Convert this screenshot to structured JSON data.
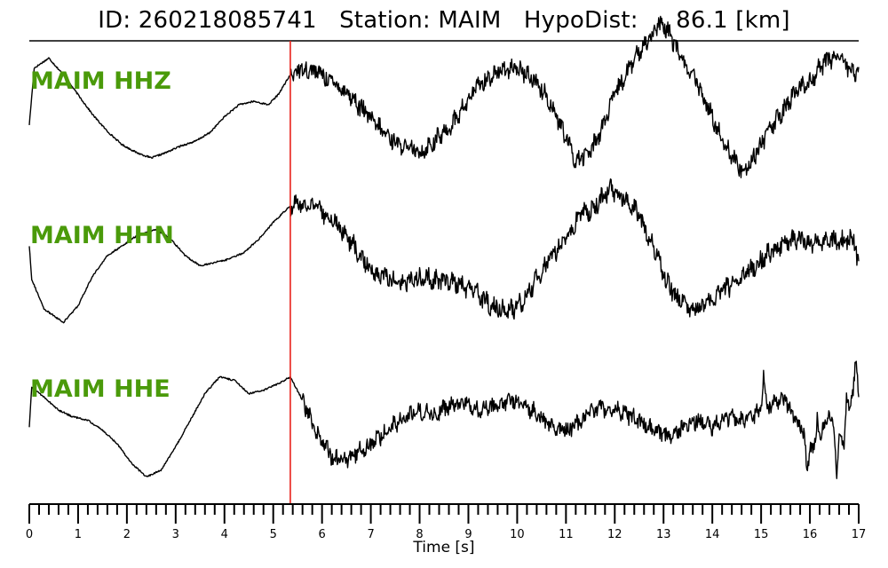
{
  "header": {
    "title": "ID: 260218085741   Station: MAIM   HypoDist:     86.1 [km]"
  },
  "chart_data": {
    "type": "line",
    "title": "ID: 260218085741   Station: MAIM   HypoDist:     86.1 [km]",
    "xlabel": "Time [s]",
    "ylabel": "",
    "xlim": [
      0,
      17
    ],
    "x_major_ticks": [
      0,
      1,
      2,
      3,
      4,
      5,
      6,
      7,
      8,
      9,
      10,
      11,
      12,
      13,
      14,
      15,
      16,
      17
    ],
    "x_minor_step": 0.2,
    "grid": false,
    "legend": "none",
    "pick_time": 5.35,
    "colors": {
      "trace": "#000000",
      "label": "#4a9a0a",
      "pick": "#e8201a"
    },
    "series": [
      {
        "name": "MAIM HHZ",
        "points": [
          [
            0,
            -0.3
          ],
          [
            0.1,
            0.55
          ],
          [
            0.4,
            0.7
          ],
          [
            0.7,
            0.45
          ],
          [
            1.0,
            0.15
          ],
          [
            1.3,
            -0.15
          ],
          [
            1.6,
            -0.4
          ],
          [
            1.9,
            -0.6
          ],
          [
            2.2,
            -0.72
          ],
          [
            2.5,
            -0.8
          ],
          [
            2.8,
            -0.72
          ],
          [
            3.1,
            -0.62
          ],
          [
            3.4,
            -0.55
          ],
          [
            3.7,
            -0.42
          ],
          [
            4.0,
            -0.18
          ],
          [
            4.3,
            0.0
          ],
          [
            4.6,
            0.05
          ],
          [
            4.9,
            0.0
          ],
          [
            5.1,
            0.15
          ],
          [
            5.35,
            0.45
          ],
          [
            5.6,
            0.55
          ],
          [
            5.9,
            0.5
          ],
          [
            6.2,
            0.35
          ],
          [
            6.5,
            0.2
          ],
          [
            6.8,
            -0.05
          ],
          [
            7.1,
            -0.3
          ],
          [
            7.4,
            -0.5
          ],
          [
            7.7,
            -0.65
          ],
          [
            8.0,
            -0.72
          ],
          [
            8.3,
            -0.55
          ],
          [
            8.6,
            -0.35
          ],
          [
            8.9,
            -0.05
          ],
          [
            9.2,
            0.3
          ],
          [
            9.5,
            0.45
          ],
          [
            9.8,
            0.55
          ],
          [
            10.1,
            0.5
          ],
          [
            10.4,
            0.35
          ],
          [
            10.7,
            0.0
          ],
          [
            11.0,
            -0.5
          ],
          [
            11.2,
            -0.85
          ],
          [
            11.5,
            -0.7
          ],
          [
            11.8,
            -0.25
          ],
          [
            12.0,
            0.15
          ],
          [
            12.3,
            0.55
          ],
          [
            12.6,
            0.9
          ],
          [
            12.9,
            1.2
          ],
          [
            13.1,
            1.1
          ],
          [
            13.4,
            0.65
          ],
          [
            13.7,
            0.3
          ],
          [
            14.0,
            -0.2
          ],
          [
            14.3,
            -0.65
          ],
          [
            14.6,
            -1.0
          ],
          [
            14.8,
            -0.85
          ],
          [
            15.1,
            -0.45
          ],
          [
            15.4,
            -0.15
          ],
          [
            15.7,
            0.2
          ],
          [
            16.0,
            0.35
          ],
          [
            16.3,
            0.65
          ],
          [
            16.6,
            0.75
          ],
          [
            16.8,
            0.55
          ],
          [
            17.0,
            0.45
          ]
        ],
        "noise_from": 5.35,
        "noise_amp": 0.12
      },
      {
        "name": "MAIM HHN",
        "points": [
          [
            0,
            0.2
          ],
          [
            0.05,
            -0.3
          ],
          [
            0.3,
            -0.75
          ],
          [
            0.7,
            -0.95
          ],
          [
            1.0,
            -0.7
          ],
          [
            1.3,
            -0.25
          ],
          [
            1.6,
            0.05
          ],
          [
            1.9,
            0.2
          ],
          [
            2.2,
            0.35
          ],
          [
            2.6,
            0.45
          ],
          [
            2.9,
            0.3
          ],
          [
            3.2,
            0.05
          ],
          [
            3.5,
            -0.1
          ],
          [
            3.8,
            -0.05
          ],
          [
            4.1,
            0.0
          ],
          [
            4.4,
            0.1
          ],
          [
            4.7,
            0.3
          ],
          [
            5.0,
            0.55
          ],
          [
            5.35,
            0.8
          ],
          [
            5.6,
            0.85
          ],
          [
            5.9,
            0.75
          ],
          [
            6.2,
            0.6
          ],
          [
            6.5,
            0.35
          ],
          [
            6.8,
            0.05
          ],
          [
            7.1,
            -0.2
          ],
          [
            7.4,
            -0.3
          ],
          [
            7.7,
            -0.35
          ],
          [
            8.0,
            -0.28
          ],
          [
            8.3,
            -0.3
          ],
          [
            8.6,
            -0.35
          ],
          [
            8.9,
            -0.4
          ],
          [
            9.2,
            -0.55
          ],
          [
            9.5,
            -0.7
          ],
          [
            9.8,
            -0.8
          ],
          [
            10.1,
            -0.65
          ],
          [
            10.4,
            -0.3
          ],
          [
            10.7,
            0.05
          ],
          [
            11.0,
            0.3
          ],
          [
            11.3,
            0.65
          ],
          [
            11.6,
            0.8
          ],
          [
            11.9,
            1.05
          ],
          [
            12.2,
            0.95
          ],
          [
            12.5,
            0.65
          ],
          [
            12.8,
            0.2
          ],
          [
            13.0,
            -0.25
          ],
          [
            13.3,
            -0.6
          ],
          [
            13.6,
            -0.75
          ],
          [
            13.9,
            -0.65
          ],
          [
            14.2,
            -0.5
          ],
          [
            14.5,
            -0.3
          ],
          [
            14.8,
            -0.15
          ],
          [
            15.1,
            0.05
          ],
          [
            15.4,
            0.2
          ],
          [
            15.7,
            0.3
          ],
          [
            16.0,
            0.25
          ],
          [
            16.3,
            0.3
          ],
          [
            16.6,
            0.25
          ],
          [
            16.9,
            0.3
          ],
          [
            17.0,
            -0.15
          ]
        ],
        "noise_from": 5.35,
        "noise_amp": 0.13
      },
      {
        "name": "MAIM HHE",
        "points": [
          [
            0,
            -0.2
          ],
          [
            0.05,
            0.4
          ],
          [
            0.3,
            0.25
          ],
          [
            0.6,
            0.05
          ],
          [
            0.9,
            -0.05
          ],
          [
            1.2,
            -0.1
          ],
          [
            1.5,
            -0.25
          ],
          [
            1.8,
            -0.45
          ],
          [
            2.1,
            -0.75
          ],
          [
            2.4,
            -0.95
          ],
          [
            2.7,
            -0.85
          ],
          [
            3.0,
            -0.5
          ],
          [
            3.3,
            -0.1
          ],
          [
            3.6,
            0.3
          ],
          [
            3.9,
            0.55
          ],
          [
            4.2,
            0.5
          ],
          [
            4.5,
            0.3
          ],
          [
            4.8,
            0.35
          ],
          [
            5.1,
            0.45
          ],
          [
            5.35,
            0.55
          ],
          [
            5.6,
            0.2
          ],
          [
            5.9,
            -0.3
          ],
          [
            6.2,
            -0.65
          ],
          [
            6.5,
            -0.7
          ],
          [
            6.8,
            -0.55
          ],
          [
            7.1,
            -0.4
          ],
          [
            7.4,
            -0.2
          ],
          [
            7.7,
            -0.05
          ],
          [
            8.0,
            0.05
          ],
          [
            8.3,
            0.0
          ],
          [
            8.6,
            0.1
          ],
          [
            8.9,
            0.15
          ],
          [
            9.2,
            0.05
          ],
          [
            9.5,
            0.1
          ],
          [
            9.8,
            0.2
          ],
          [
            10.1,
            0.15
          ],
          [
            10.4,
            0.0
          ],
          [
            10.7,
            -0.2
          ],
          [
            11.0,
            -0.25
          ],
          [
            11.3,
            -0.1
          ],
          [
            11.6,
            0.05
          ],
          [
            11.9,
            0.1
          ],
          [
            12.2,
            0.0
          ],
          [
            12.5,
            -0.1
          ],
          [
            12.8,
            -0.25
          ],
          [
            13.1,
            -0.35
          ],
          [
            13.4,
            -0.2
          ],
          [
            13.7,
            -0.1
          ],
          [
            14.0,
            -0.2
          ],
          [
            14.3,
            -0.05
          ],
          [
            14.6,
            -0.1
          ],
          [
            14.9,
            0.0
          ],
          [
            15.2,
            0.15
          ],
          [
            15.5,
            0.2
          ],
          [
            15.8,
            -0.2
          ],
          [
            16.1,
            -0.55
          ],
          [
            16.4,
            0.0
          ],
          [
            16.7,
            -0.5
          ],
          [
            16.9,
            0.45
          ],
          [
            17.0,
            0.1
          ]
        ],
        "noise_from": 5.6,
        "noise_amp": 0.11,
        "spikes": [
          [
            15.05,
            0.55
          ],
          [
            15.95,
            -0.6
          ],
          [
            16.15,
            0.35
          ],
          [
            16.55,
            -0.6
          ],
          [
            16.75,
            0.5
          ],
          [
            16.95,
            0.55
          ]
        ]
      }
    ]
  }
}
